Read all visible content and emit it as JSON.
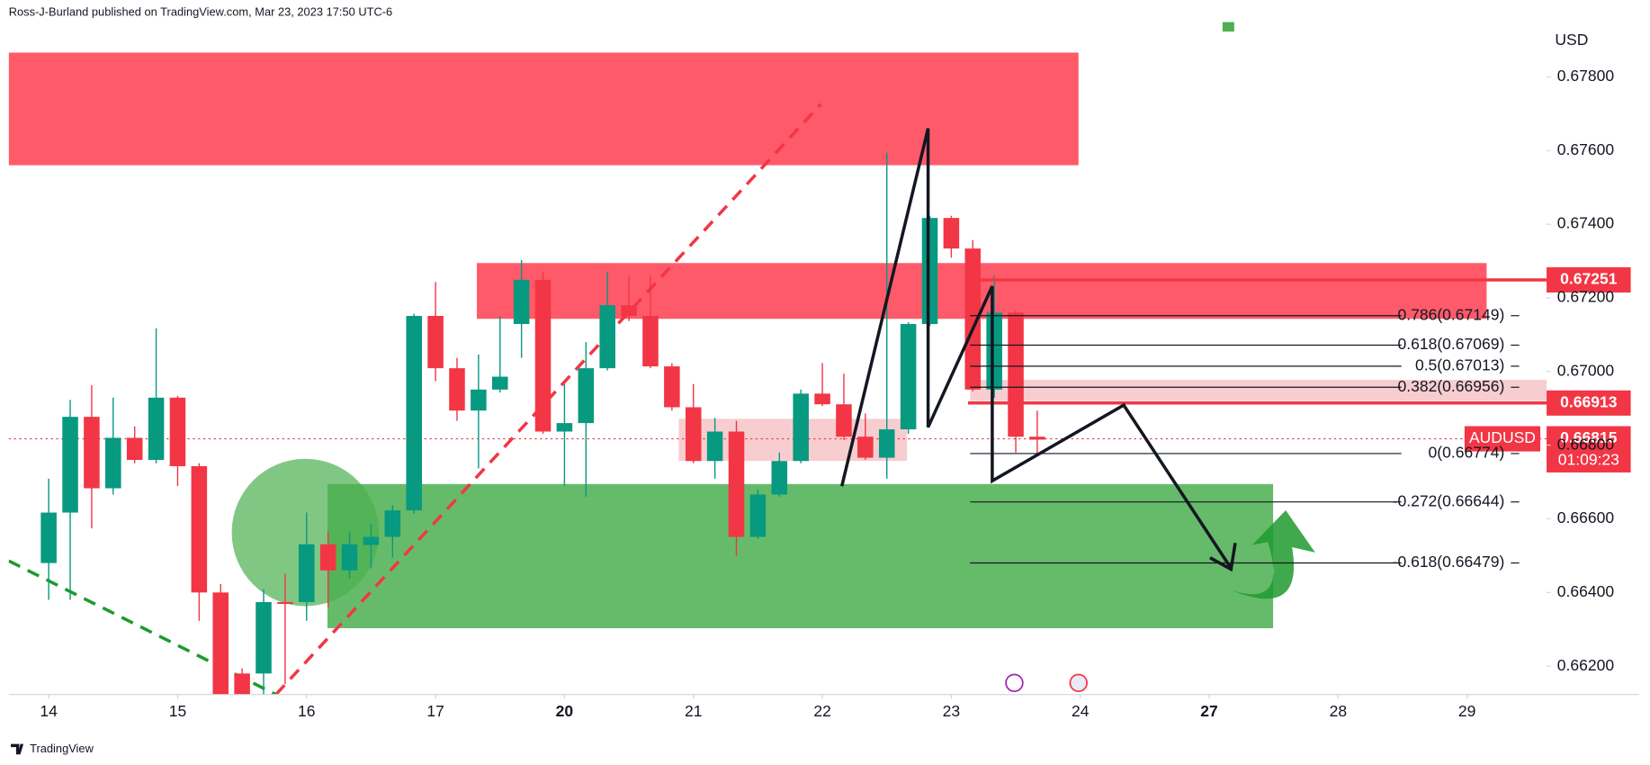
{
  "header": "Ross-J-Burland published on TradingView.com, Mar 23, 2023 17:50 UTC-6",
  "footer": "TradingView",
  "chart_data": {
    "type": "candlestick",
    "currency": "USD",
    "symbol": "AUDUSD",
    "up_color": "#089981",
    "down_color": "#f23645",
    "open": [
      0.6648,
      0.66617,
      0.66877,
      0.66683,
      0.6682,
      0.6676,
      0.66929,
      0.66743,
      0.664,
      0.6618,
      0.6618,
      0.66374,
      0.66374,
      0.66531,
      0.6646,
      0.66529,
      0.66551,
      0.66623,
      0.67151,
      0.67009,
      0.66894,
      0.66951,
      0.67129,
      0.67249,
      0.66837,
      0.6686,
      0.67009,
      0.6718,
      0.67151,
      0.67014,
      0.66903,
      0.66757,
      0.66837,
      0.66551,
      0.66666,
      0.66757,
      0.6694,
      0.66911,
      0.66823,
      0.66766,
      0.66843,
      0.67129,
      0.67417,
      0.67334,
      0.66951,
      0.6716,
      0.66823
    ],
    "high": [
      0.66709,
      0.66923,
      0.66963,
      0.66929,
      0.66851,
      0.67117,
      0.66934,
      0.66751,
      0.66423,
      0.66194,
      0.66409,
      0.66451,
      0.66617,
      0.66566,
      0.66566,
      0.66586,
      0.66637,
      0.67157,
      0.67243,
      0.67037,
      0.67046,
      0.67151,
      0.67303,
      0.67271,
      0.66966,
      0.6708,
      0.67271,
      0.6726,
      0.6726,
      0.67023,
      0.66966,
      0.66874,
      0.66866,
      0.6668,
      0.6678,
      0.66951,
      0.67023,
      0.66994,
      0.66886,
      0.67594,
      0.67134,
      0.67423,
      0.67423,
      0.67357,
      0.6726,
      0.67166,
      0.66894
    ],
    "low": [
      0.6638,
      0.6638,
      0.66574,
      0.66666,
      0.66751,
      0.66751,
      0.66689,
      0.66323,
      0.661,
      0.661,
      0.66123,
      0.66151,
      0.66323,
      0.6636,
      0.66437,
      0.66466,
      0.66494,
      0.66614,
      0.66974,
      0.66866,
      0.66737,
      0.66943,
      0.67037,
      0.66831,
      0.66689,
      0.6666,
      0.67003,
      0.67137,
      0.67009,
      0.66894,
      0.66751,
      0.66709,
      0.665,
      0.66546,
      0.6666,
      0.66751,
      0.66906,
      0.66814,
      0.6676,
      0.66709,
      0.66831,
      0.67123,
      0.67309,
      0.66946,
      0.66929,
      0.6678,
      0.66774
    ],
    "close": [
      0.66617,
      0.66877,
      0.66683,
      0.6682,
      0.6676,
      0.66929,
      0.66743,
      0.664,
      0.66123,
      0.66123,
      0.66374,
      0.66369,
      0.66531,
      0.6646,
      0.66531,
      0.66551,
      0.66623,
      0.67151,
      0.67009,
      0.66894,
      0.66951,
      0.66986,
      0.67249,
      0.66837,
      0.6686,
      0.67009,
      0.6718,
      0.67151,
      0.67014,
      0.66903,
      0.66757,
      0.66837,
      0.66551,
      0.66666,
      0.66757,
      0.6694,
      0.66911,
      0.66823,
      0.66766,
      0.66843,
      0.67129,
      0.67417,
      0.67334,
      0.66951,
      0.6716,
      0.66823,
      0.66815
    ],
    "xlim": [
      -0.86,
      70.7
    ],
    "xticks": [
      {
        "value": 1,
        "label": "14"
      },
      {
        "value": 7,
        "label": "15"
      },
      {
        "value": 13,
        "label": "16"
      },
      {
        "value": 19,
        "label": "17"
      },
      {
        "value": 25,
        "label": "20"
      },
      {
        "value": 31,
        "label": "21"
      },
      {
        "value": 37,
        "label": "22"
      },
      {
        "value": 43,
        "label": "23"
      },
      {
        "value": 49,
        "label": "24"
      },
      {
        "value": 55,
        "label": "27"
      },
      {
        "value": 61,
        "label": "28"
      },
      {
        "value": 67,
        "label": "29"
      }
    ],
    "ylim": [
      0.66123,
      0.67946
    ],
    "yticks": [
      {
        "value": 0.678,
        "label": "0.67800"
      },
      {
        "value": 0.676,
        "label": "0.67600"
      },
      {
        "value": 0.674,
        "label": "0.67400"
      },
      {
        "value": 0.672,
        "label": "0.67200"
      },
      {
        "value": 0.67,
        "label": "0.67000"
      },
      {
        "value": 0.668,
        "label": "0.66800"
      },
      {
        "value": 0.666,
        "label": "0.66600"
      },
      {
        "value": 0.664,
        "label": "0.66400"
      },
      {
        "value": 0.662,
        "label": "0.66200"
      }
    ],
    "price_labels": [
      "0.67251",
      "0.66913",
      "0.66815",
      "01:09:23"
    ],
    "fib_levels": [
      "0.786(0.67149)",
      "0.618(0.67069)",
      "0.5(0.67013)",
      "0.382(0.66956)",
      "0(0.66774)",
      "-0.272(0.66644)",
      "-0.618(0.66479)"
    ]
  }
}
